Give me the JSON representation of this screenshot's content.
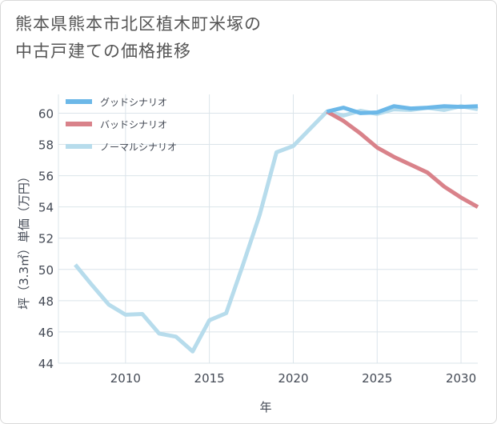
{
  "title_lines": [
    "熊本県熊本市北区植木町米塚の",
    "中古戸建ての価格推移"
  ],
  "chart_data": {
    "type": "line",
    "title": "熊本県熊本市北区植木町米塚の中古戸建ての価格推移",
    "xlabel": "年",
    "ylabel": "坪（3.3㎡）単価（万円）",
    "xlim": [
      2006,
      2031
    ],
    "ylim": [
      44,
      61.2
    ],
    "xticks": [
      2010,
      2015,
      2020,
      2025,
      2030
    ],
    "yticks": [
      44,
      46,
      48,
      50,
      52,
      54,
      56,
      58,
      60
    ],
    "grid": true,
    "legend_position": "top-left",
    "series": [
      {
        "name": "グッドシナリオ",
        "color": "#6cb8e8",
        "x": [
          2022,
          2023,
          2024,
          2025,
          2026,
          2027,
          2028,
          2029,
          2030,
          2031
        ],
        "values": [
          60.1,
          60.35,
          60.0,
          60.05,
          60.45,
          60.3,
          60.35,
          60.45,
          60.4,
          60.45
        ]
      },
      {
        "name": "バッドシナリオ",
        "color": "#d9828a",
        "x": [
          2022,
          2023,
          2024,
          2025,
          2026,
          2027,
          2028,
          2029,
          2030,
          2031
        ],
        "values": [
          60.1,
          59.5,
          58.7,
          57.8,
          57.2,
          56.7,
          56.2,
          55.3,
          54.6,
          54.0
        ]
      },
      {
        "name": "ノーマルシナリオ",
        "color": "#b7dcec",
        "x": [
          2007,
          2008,
          2009,
          2010,
          2011,
          2012,
          2013,
          2014,
          2015,
          2016,
          2017,
          2018,
          2019,
          2020,
          2021,
          2022,
          2023,
          2024,
          2025,
          2026,
          2027,
          2028,
          2029,
          2030,
          2031
        ],
        "values": [
          50.3,
          49.0,
          47.75,
          47.1,
          47.15,
          45.9,
          45.7,
          44.75,
          46.75,
          47.2,
          50.3,
          53.5,
          57.5,
          57.9,
          59.0,
          60.1,
          59.85,
          60.15,
          59.95,
          60.25,
          60.2,
          60.35,
          60.2,
          60.45,
          60.25
        ]
      }
    ]
  }
}
